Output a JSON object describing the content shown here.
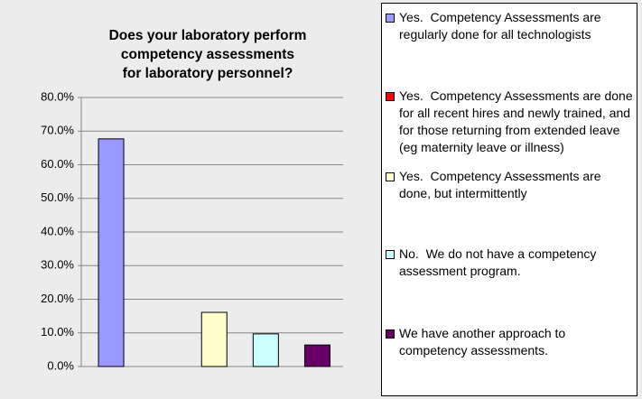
{
  "chart_data": {
    "type": "bar",
    "title": [
      "Does your laboratory perform",
      "competency assessments",
      "for laboratory personnel?"
    ],
    "categories": [
      "Yes.  Competency Assessments are regularly done for all technologists",
      "Yes.  Competency Assessments are done for all recent hires and newly trained, and for those returning from extended leave (eg maternity leave or illness)",
      "Yes.  Competency Assessments are done, but intermittently",
      "No.  We do not have a competency assessment program.",
      "We have another approach to competency assessments."
    ],
    "values": [
      67.7,
      0,
      16.1,
      9.7,
      6.4
    ],
    "colors": [
      "#9999ff",
      "#ff0000",
      "#ffffcc",
      "#ccffff",
      "#660066"
    ],
    "ylim": [
      0,
      80
    ],
    "yticks": [
      {
        "value": 0,
        "label": "0.0%"
      },
      {
        "value": 10,
        "label": "10.0%"
      },
      {
        "value": 20,
        "label": "20.0%"
      },
      {
        "value": 30,
        "label": "30.0%"
      },
      {
        "value": 40,
        "label": "40.0%"
      },
      {
        "value": 50,
        "label": "50.0%"
      },
      {
        "value": 60,
        "label": "60.0%"
      },
      {
        "value": 70,
        "label": "70.0%"
      },
      {
        "value": 80,
        "label": "80.0%"
      }
    ],
    "grid": true
  }
}
